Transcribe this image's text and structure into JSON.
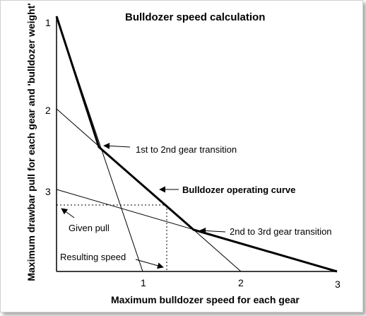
{
  "title": "Bulldozer speed calculation",
  "x_axis_label": "Maximum bulldozer speed for each gear",
  "y_axis_label": "Maximum  drawbar pull for each gear and 'bulldozer weight'",
  "x_ticks": [
    "1",
    "2",
    "3"
  ],
  "y_ticks": [
    "1",
    "2",
    "3"
  ],
  "annotations": {
    "gear_1_2": "1st to 2nd gear transition",
    "operating_curve": "Bulldozer operating curve",
    "gear_2_3": "2nd to 3rd gear transition",
    "given_pull": "Given pull",
    "resulting_speed": "Resulting speed"
  },
  "colors": {
    "lines": "#000000",
    "dotted": "#000000",
    "background": "#ffffff"
  }
}
